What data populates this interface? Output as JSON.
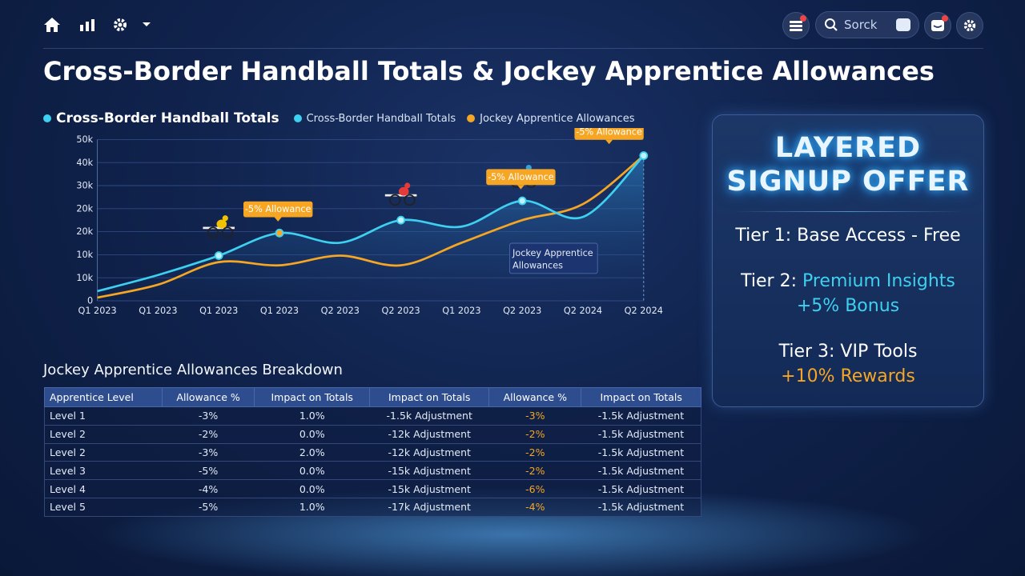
{
  "nav": {
    "icons": [
      "home-icon",
      "bar-chart-icon",
      "gear-icon",
      "chevron-down-icon"
    ],
    "search_placeholder": "Sorck"
  },
  "page_title": "Cross-Border Handball Totals & Jockey Apprentice Allowances",
  "legend": {
    "main": "Cross-Border Handball Totals",
    "series1": "Cross-Border Handball Totals",
    "series2": "Jockey Apprentice Allowances"
  },
  "colors": {
    "cyan": "#3ed0f0",
    "orange": "#f6a623",
    "accent_blue": "#2e4d8f"
  },
  "chart_data": {
    "type": "line",
    "categories": [
      "Q1 2023",
      "Q1 2023",
      "Q1 2023",
      "Q1 2023",
      "Q2 2023",
      "Q2 2023",
      "Q1 2023",
      "Q2 2023",
      "Q2 2024",
      "Q2 2024"
    ],
    "y_tick_labels": [
      "0",
      "10k",
      "10k",
      "20k",
      "20k",
      "30k",
      "40k",
      "50k"
    ],
    "series": [
      {
        "name": "Cross-Border Handball Totals",
        "color": "#3ed0f0",
        "values": [
          3,
          8,
          14,
          21,
          18,
          25,
          23,
          31,
          26,
          45
        ]
      },
      {
        "name": "Jockey Apprentice Allowances",
        "color": "#f6a623",
        "values": [
          1,
          5,
          12,
          11,
          14,
          11,
          18,
          25,
          30,
          45
        ]
      }
    ],
    "annotations": [
      "-5% Allowance",
      "-5% Allowance",
      "-5% Allowance"
    ],
    "callout": "Jockey Apprentice Allowances",
    "grid": true,
    "legend_position": "top-left"
  },
  "table": {
    "title": "Jockey Apprentice Allowances Breakdown",
    "headers": [
      "Apprentice Level",
      "Allowance %",
      "Impact on Totals",
      "Impact on Totals",
      "Allowance %",
      "Impact on Totals"
    ],
    "rows": [
      [
        "Level 1",
        "-3%",
        "1.0%",
        "-1.5k Adjustment",
        "-3%",
        "-1.5k Adjustment"
      ],
      [
        "Level 2",
        "-2%",
        "0.0%",
        "-12k Adjustment",
        "-2%",
        "-1.5k Adjustment"
      ],
      [
        "Level 2",
        "-3%",
        "2.0%",
        "-12k Adjustment",
        "-2%",
        "-1.5k Adjustment"
      ],
      [
        "Level 3",
        "-5%",
        "0.0%",
        "-15k Adjustment",
        "-2%",
        "-1.5k Adjustment"
      ],
      [
        "Level 4",
        "-4%",
        "0.0%",
        "-15k Adjustment",
        "-6%",
        "-1.5k Adjustment"
      ],
      [
        "Level 5",
        "-5%",
        "1.0%",
        "-17k Adjustment",
        "-4%",
        "-1.5k Adjustment"
      ]
    ]
  },
  "offer": {
    "title_line1": "LAYERED",
    "title_line2": "SIGNUP OFFER",
    "tier1": "Tier 1: Base Access - Free",
    "tier2_prefix": "Tier 2: ",
    "tier2_highlight": "Premium Insights",
    "tier2_bonus": "+5% Bonus",
    "tier3": "Tier 3: VIP Tools",
    "tier3_bonus": "+10% Rewards"
  }
}
